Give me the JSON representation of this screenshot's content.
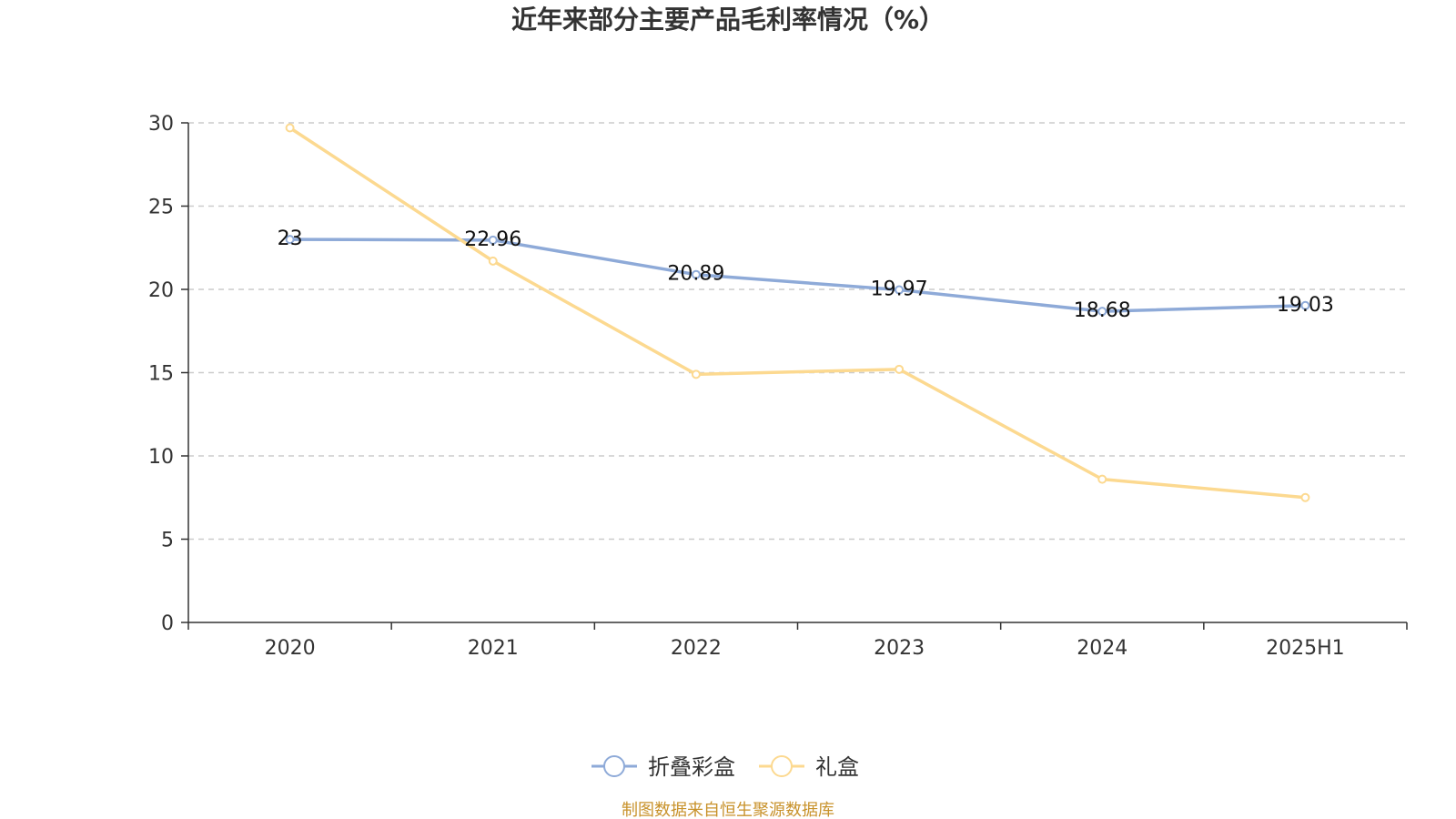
{
  "chart_data": {
    "type": "line",
    "title": "近年来部分主要产品毛利率情况（%）",
    "categories": [
      "2020",
      "2021",
      "2022",
      "2023",
      "2024",
      "2025H1"
    ],
    "series": [
      {
        "name": "折叠彩盒",
        "color": "#8eaad8",
        "values": [
          23,
          22.96,
          20.89,
          19.97,
          18.68,
          19.03
        ],
        "labels": [
          "23",
          "22.96",
          "20.89",
          "19.97",
          "18.68",
          "19.03"
        ]
      },
      {
        "name": "礼盒",
        "color": "#fcd990",
        "values": [
          29.7,
          21.7,
          14.9,
          15.2,
          8.6,
          7.5
        ]
      }
    ],
    "ylim": [
      0,
      30
    ],
    "yticks": [
      0,
      5,
      10,
      15,
      20,
      25,
      30
    ],
    "grid": true,
    "legend": "bottom-center"
  },
  "source_note": "制图数据来自恒生聚源数据库"
}
